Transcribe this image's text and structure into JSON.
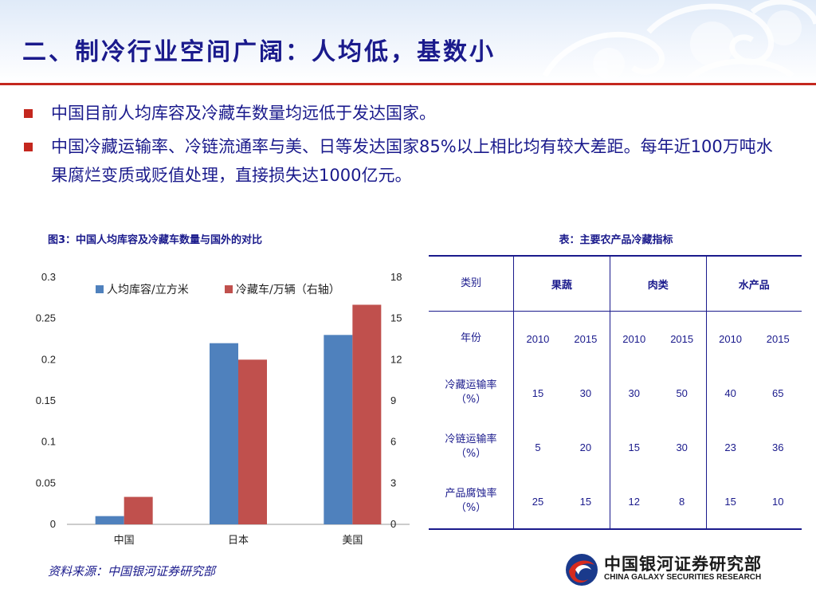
{
  "title": "二、制冷行业空间广阔：人均低，基数小",
  "bullets": [
    "中国目前人均库容及冷藏车数量均远低于发达国家。",
    "中国冷藏运输率、冷链流通率与美、日等发达国家85%以上相比均有较大差距。每年近100万吨水果腐烂变质或贬值处理，直接损失达1000亿元。"
  ],
  "figure_caption": "图3：中国人均库容及冷藏车数量与国外的对比",
  "source": "资料来源：中国银河证券研究部",
  "table": {
    "caption": "表：主要农产品冷藏指标",
    "header": {
      "label": "类别",
      "groups": [
        "果蔬",
        "肉类",
        "水产品"
      ]
    },
    "year_row": {
      "label": "年份",
      "values": [
        "2010",
        "2015",
        "2010",
        "2015",
        "2010",
        "2015"
      ]
    },
    "rows": [
      {
        "label_line1": "冷藏运输率",
        "label_line2": "（%）",
        "values": [
          "15",
          "30",
          "30",
          "50",
          "40",
          "65"
        ]
      },
      {
        "label_line1": "冷链运输率",
        "label_line2": "（%）",
        "values": [
          "5",
          "20",
          "15",
          "30",
          "23",
          "36"
        ]
      },
      {
        "label_line1": "产品腐蚀率",
        "label_line2": "（%）",
        "values": [
          "25",
          "15",
          "12",
          "8",
          "15",
          "10"
        ]
      }
    ]
  },
  "logo": {
    "cn": "中国银河证券研究部",
    "en": "CHINA GALAXY SECURITIES RESEARCH"
  },
  "colors": {
    "title": "#1a1a8c",
    "accent": "#c4271e",
    "series1": "#4f81bd",
    "series2": "#c0504d"
  },
  "chart_data": {
    "type": "bar",
    "categories": [
      "中国",
      "日本",
      "美国"
    ],
    "series": [
      {
        "name": "人均库容/立方米",
        "axis": "left",
        "values": [
          0.01,
          0.22,
          0.23
        ]
      },
      {
        "name": "冷藏车/万辆（右轴）",
        "axis": "right",
        "values": [
          2.0,
          12.0,
          16.0
        ]
      }
    ],
    "y_left": {
      "min": 0,
      "max": 0.3,
      "ticks": [
        "0",
        "0.05",
        "0.1",
        "0.15",
        "0.2",
        "0.25",
        "0.3"
      ]
    },
    "y_right": {
      "min": 0,
      "max": 18,
      "ticks": [
        "0",
        "3",
        "6",
        "9",
        "12",
        "15",
        "18"
      ]
    },
    "legend_position": "top",
    "grid": false
  }
}
